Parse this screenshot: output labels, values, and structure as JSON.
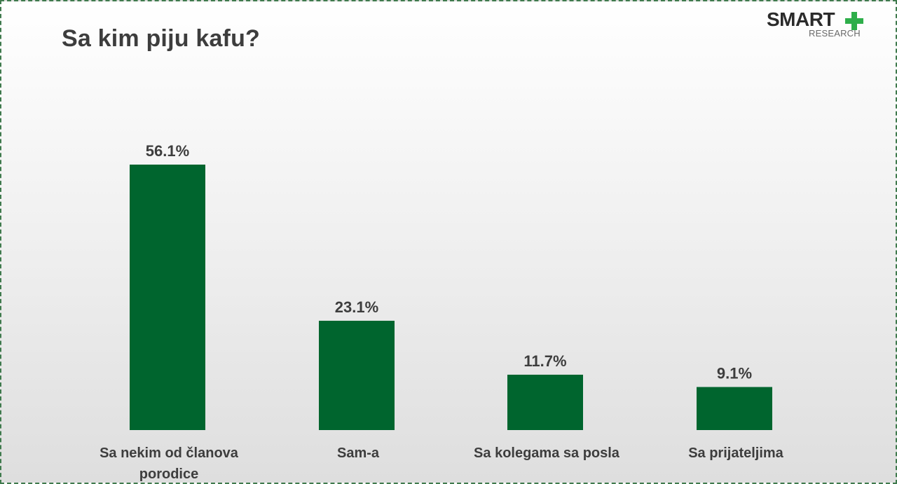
{
  "title": "Sa kim piju kafu?",
  "logo": {
    "main": "SMART",
    "sub": "RESEARCH",
    "plus_icon": "plus-icon",
    "plus_color": "#2eae4a"
  },
  "colors": {
    "bar": "#00652e",
    "text": "#3d3d3d"
  },
  "chart_data": {
    "type": "bar",
    "title": "Sa kim piju kafu?",
    "categories": [
      "Sa nekim od članova porodice",
      "Sam-a",
      "Sa kolegama sa posla",
      "Sa prijateljima"
    ],
    "values": [
      56.1,
      23.1,
      11.7,
      9.1
    ],
    "data_labels": [
      "56.1%",
      "23.1%",
      "11.7%",
      "9.1%"
    ],
    "xlabel": "",
    "ylabel": "",
    "ylim": [
      0,
      56.1
    ],
    "grid": false,
    "legend": "none"
  }
}
